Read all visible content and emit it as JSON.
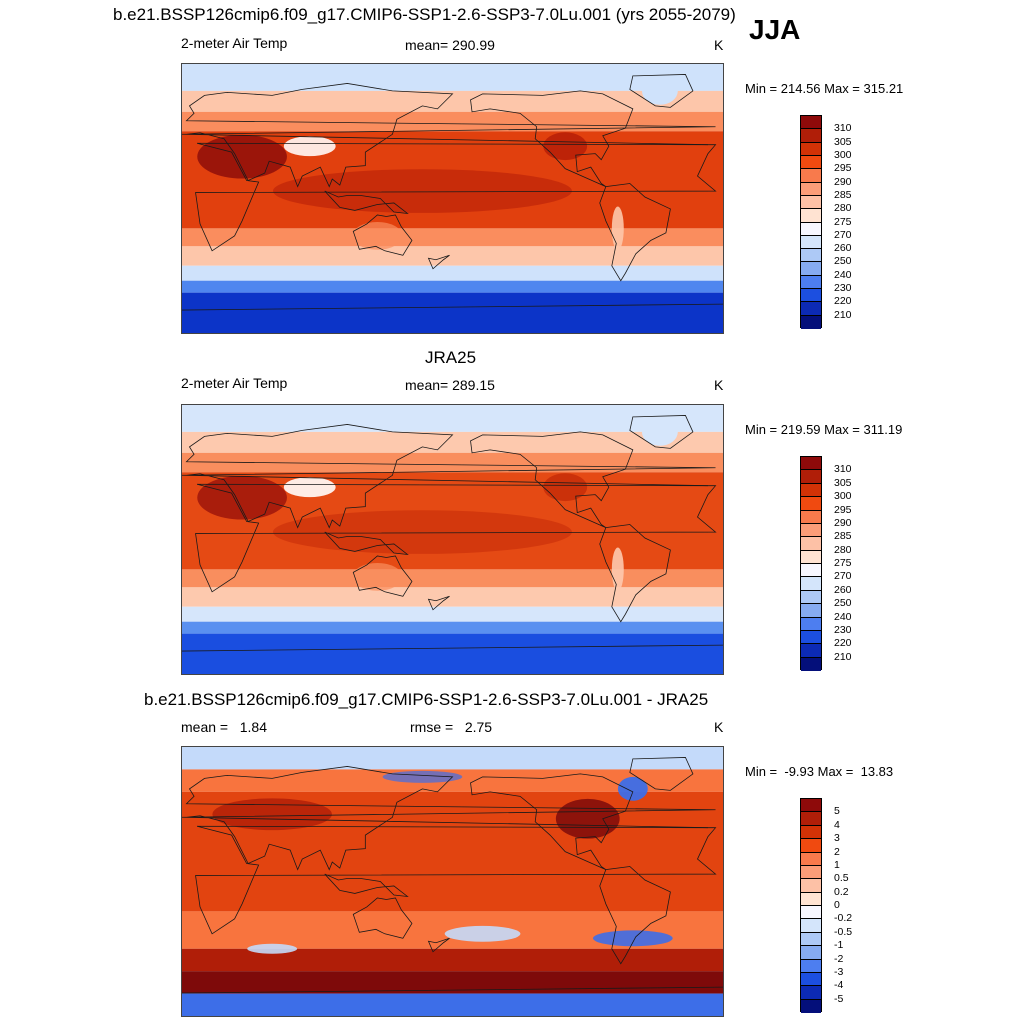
{
  "season": "JJA",
  "panels": [
    {
      "title": "b.e21.BSSP126cmip6.f09_g17.CMIP6-SSP1-2.6-SSP3-7.0Lu.001 (yrs 2055-2079)",
      "left_label": "2-meter Air Temp",
      "center_label": "mean= 290.99",
      "units": "K",
      "minmax": "Min = 214.56 Max = 315.21",
      "colorbar": {
        "labels": [
          "310",
          "305",
          "300",
          "295",
          "290",
          "285",
          "280",
          "275",
          "270",
          "260",
          "250",
          "240",
          "230",
          "220",
          "210"
        ],
        "colors": [
          "#8e0a0a",
          "#b01e08",
          "#d23206",
          "#f04a10",
          "#f87a4c",
          "#fb9d78",
          "#fdc1a6",
          "#ffe3d2",
          "#f7f7ff",
          "#d4e5fb",
          "#adc9f6",
          "#86abf1",
          "#4d7ef0",
          "#1c4fe0",
          "#0c2ab4",
          "#040f7a"
        ]
      },
      "map_palette": {
        "pole": "#0c34c8",
        "cold": "#4f86ef",
        "cool": "#cfe2fb",
        "mild": "#fdc6aa",
        "warm": "#fa8d5e",
        "hot": "#e1400e",
        "vhot": "#b41c07",
        "extreme": "#8a0a0a",
        "desert_hi": "#fff0ec",
        "land_outline": "#1a1a1a"
      }
    },
    {
      "title": "JRA25",
      "left_label": "2-meter Air Temp",
      "center_label": "mean= 289.15",
      "units": "K",
      "minmax": "Min = 219.59 Max = 311.19",
      "colorbar": {
        "labels": [
          "310",
          "305",
          "300",
          "295",
          "290",
          "285",
          "280",
          "275",
          "270",
          "260",
          "250",
          "240",
          "230",
          "220",
          "210"
        ],
        "colors": [
          "#8e0a0a",
          "#b01e08",
          "#d23206",
          "#f04a10",
          "#f87a4c",
          "#fb9d78",
          "#fdc1a6",
          "#ffe3d2",
          "#f7f7ff",
          "#d4e5fb",
          "#adc9f6",
          "#86abf1",
          "#4d7ef0",
          "#1c4fe0",
          "#0c2ab4",
          "#040f7a"
        ]
      },
      "map_palette": {
        "pole": "#1a4ee0",
        "cold": "#5a90f0",
        "cool": "#d6e6fb",
        "mild": "#fdc9ae",
        "warm": "#f98e5e",
        "hot": "#e54a14",
        "vhot": "#c42a08",
        "extreme": "#9a120a",
        "desert_hi": "#fff4f0",
        "land_outline": "#1a1a1a"
      }
    },
    {
      "title": "b.e21.BSSP126cmip6.f09_g17.CMIP6-SSP1-2.6-SSP3-7.0Lu.001 - JRA25",
      "left_label": "mean =   1.84",
      "center_label": "rmse =   2.75",
      "units": "K",
      "minmax": "Min =  -9.93 Max =  13.83",
      "colorbar": {
        "labels": [
          "5",
          "4",
          "3",
          "2",
          "1",
          "0.5",
          "0.2",
          "0",
          "-0.2",
          "-0.5",
          "-1",
          "-2",
          "-3",
          "-4",
          "-5"
        ],
        "colors": [
          "#8e0a0a",
          "#b01e08",
          "#d23206",
          "#f04a10",
          "#f87a4c",
          "#fb9d78",
          "#fdc1a6",
          "#ffe3d2",
          "#f7f7ff",
          "#d4e5fb",
          "#adc9f6",
          "#86abf1",
          "#4d7ef0",
          "#1c4fe0",
          "#0c2ab4",
          "#040f7a"
        ]
      },
      "map_palette": {
        "pole": "#f2f2ff",
        "cold": "#3d6ee8",
        "cool": "#c4dafa",
        "mild": "#fdbfa0",
        "warm": "#f8743e",
        "hot": "#e24410",
        "vhot": "#b01e08",
        "extreme": "#7e0a0a",
        "desert_hi": "#ffffff",
        "land_outline": "#1a1a1a"
      }
    }
  ]
}
